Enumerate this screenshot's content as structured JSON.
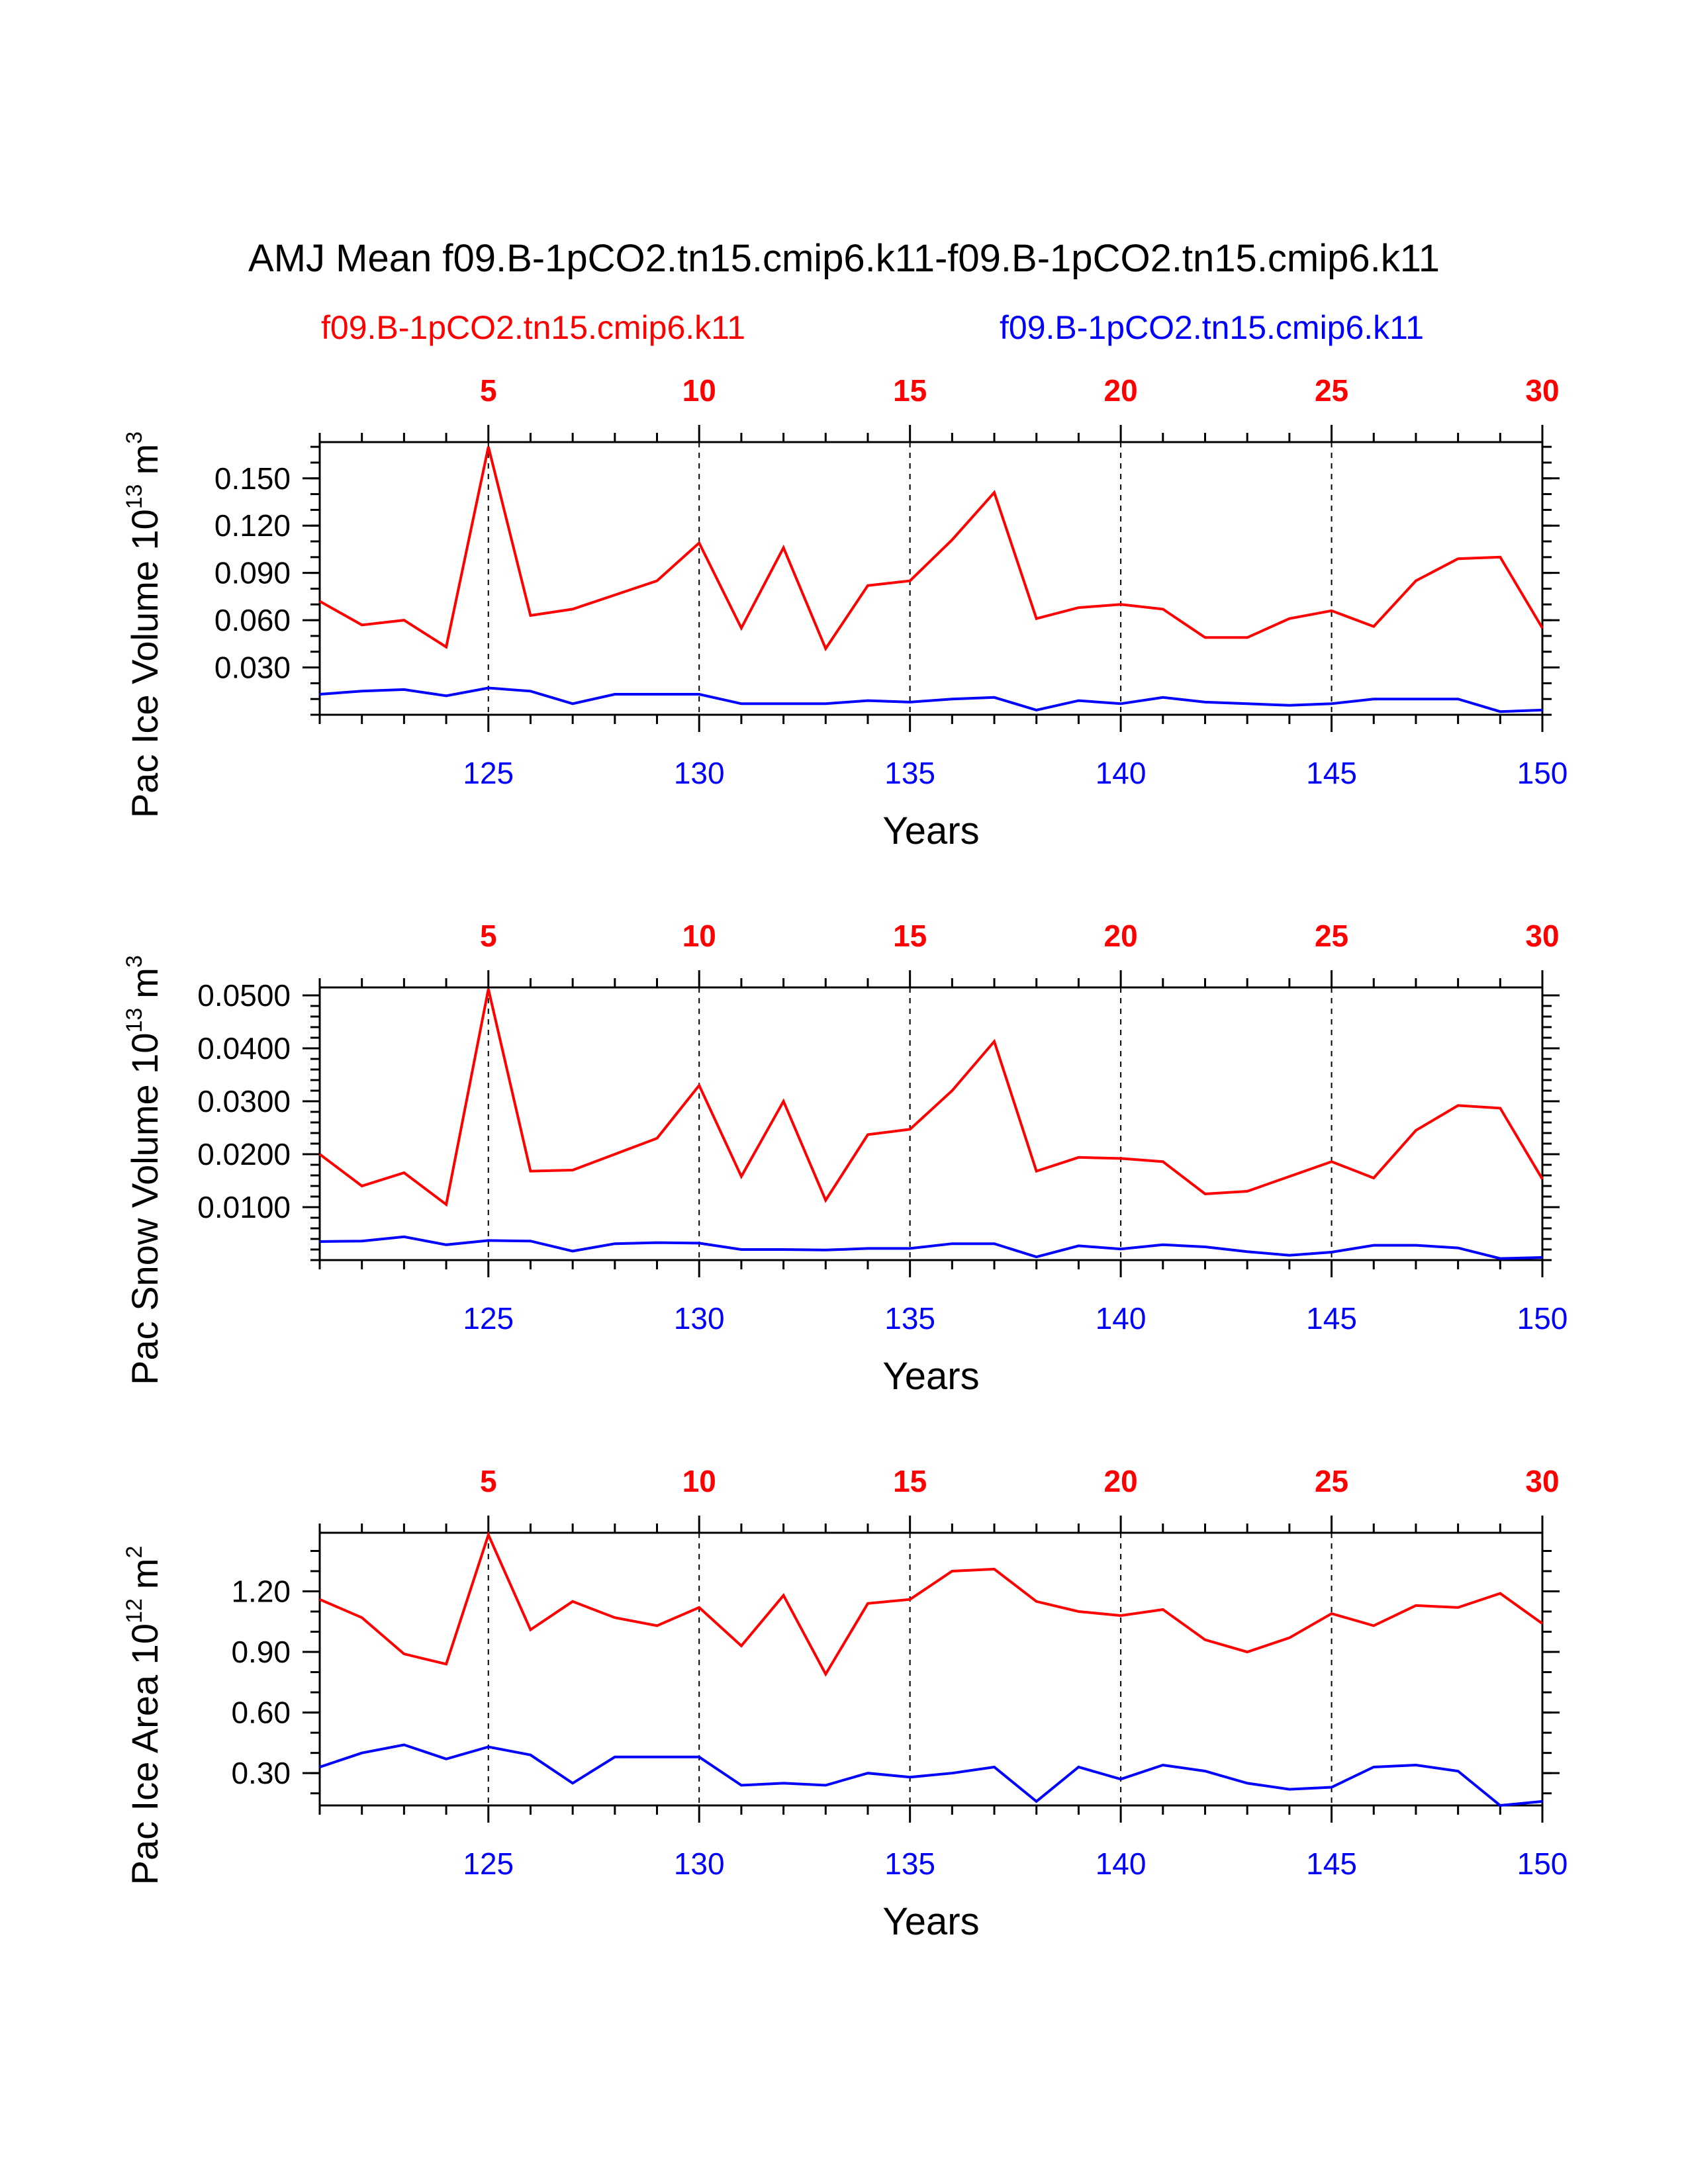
{
  "title": "AMJ Mean f09.B-1pCO2.tn15.cmip6.k11-f09.B-1pCO2.tn15.cmip6.k11",
  "legend": {
    "left": "f09.B-1pCO2.tn15.cmip6.k11",
    "right": "f09.B-1pCO2.tn15.cmip6.k11"
  },
  "colors": {
    "series1": "#ff0000",
    "series2": "#0000ff",
    "axis": "#000000"
  },
  "chart_data": [
    {
      "type": "line",
      "ylabel": "Pac Ice Volume 10",
      "ylabel_exp": "13",
      "ylabel_unit": "m",
      "ylabel_unit_exp": "3",
      "xlabel": "Years",
      "x_bottom_ticks": [
        "125",
        "130",
        "135",
        "140",
        "145",
        "150"
      ],
      "x_top_ticks": [
        "5",
        "10",
        "15",
        "20",
        "25",
        "30"
      ],
      "xlim": [
        121,
        150
      ],
      "ylim": [
        0,
        0.173
      ],
      "y_ticks": [
        0.03,
        0.06,
        0.09,
        0.12,
        0.15
      ],
      "y_tick_labels": [
        "0.030",
        "0.060",
        "0.090",
        "0.120",
        "0.150"
      ],
      "y_minor": 0.01,
      "x": [
        121,
        122,
        123,
        124,
        125,
        126,
        127,
        128,
        129,
        130,
        131,
        132,
        133,
        134,
        135,
        136,
        137,
        138,
        139,
        140,
        141,
        142,
        143,
        144,
        145,
        146,
        147,
        148,
        149,
        150
      ],
      "series": [
        {
          "name": "f09.B-1pCO2.tn15.cmip6.k11",
          "color": "#ff0000",
          "values": [
            0.072,
            0.057,
            0.06,
            0.043,
            0.17,
            0.063,
            0.067,
            0.076,
            0.085,
            0.109,
            0.055,
            0.106,
            0.042,
            0.082,
            0.085,
            0.111,
            0.141,
            0.061,
            0.068,
            0.07,
            0.067,
            0.049,
            0.049,
            0.061,
            0.066,
            0.056,
            0.085,
            0.099,
            0.1,
            0.055
          ]
        },
        {
          "name": "f09.B-1pCO2.tn15.cmip6.k11",
          "color": "#0000ff",
          "values": [
            0.013,
            0.015,
            0.016,
            0.012,
            0.017,
            0.015,
            0.007,
            0.013,
            0.013,
            0.013,
            0.007,
            0.007,
            0.007,
            0.009,
            0.008,
            0.01,
            0.011,
            0.003,
            0.009,
            0.007,
            0.011,
            0.008,
            0.007,
            0.006,
            0.007,
            0.01,
            0.01,
            0.01,
            0.002,
            0.003
          ]
        }
      ]
    },
    {
      "type": "line",
      "ylabel": "Pac Snow Volume 10",
      "ylabel_exp": "13",
      "ylabel_unit": "m",
      "ylabel_unit_exp": "3",
      "xlabel": "Years",
      "x_bottom_ticks": [
        "125",
        "130",
        "135",
        "140",
        "145",
        "150"
      ],
      "x_top_ticks": [
        "5",
        "10",
        "15",
        "20",
        "25",
        "30"
      ],
      "xlim": [
        121,
        150
      ],
      "ylim": [
        0,
        0.0515
      ],
      "y_ticks": [
        0.01,
        0.02,
        0.03,
        0.04,
        0.05
      ],
      "y_tick_labels": [
        "0.0100",
        "0.0200",
        "0.0300",
        "0.0400",
        "0.0500"
      ],
      "y_minor": 0.002,
      "x": [
        121,
        122,
        123,
        124,
        125,
        126,
        127,
        128,
        129,
        130,
        131,
        132,
        133,
        134,
        135,
        136,
        137,
        138,
        139,
        140,
        141,
        142,
        143,
        144,
        145,
        146,
        147,
        148,
        149,
        150
      ],
      "series": [
        {
          "name": "f09.B-1pCO2.tn15.cmip6.k11",
          "color": "#ff0000",
          "values": [
            0.02,
            0.014,
            0.0165,
            0.0105,
            0.0512,
            0.0168,
            0.017,
            0.02,
            0.023,
            0.033,
            0.0158,
            0.03,
            0.0113,
            0.0237,
            0.0247,
            0.032,
            0.0413,
            0.0168,
            0.0194,
            0.0192,
            0.0186,
            0.0125,
            0.013,
            0.0158,
            0.0186,
            0.0155,
            0.0245,
            0.0292,
            0.0287,
            0.0153
          ]
        },
        {
          "name": "f09.B-1pCO2.tn15.cmip6.k11",
          "color": "#0000ff",
          "values": [
            0.0035,
            0.0036,
            0.0044,
            0.0029,
            0.0037,
            0.0036,
            0.0017,
            0.0031,
            0.0033,
            0.0032,
            0.002,
            0.002,
            0.0019,
            0.0022,
            0.0022,
            0.0031,
            0.0031,
            0.0006,
            0.0027,
            0.0021,
            0.0029,
            0.0025,
            0.0016,
            0.0009,
            0.0015,
            0.0028,
            0.0028,
            0.0023,
            0.0003,
            0.0005
          ]
        }
      ]
    },
    {
      "type": "line",
      "ylabel": "Pac Ice Area 10",
      "ylabel_exp": "12",
      "ylabel_unit": "m",
      "ylabel_unit_exp": "2",
      "xlabel": "Years",
      "x_bottom_ticks": [
        "125",
        "130",
        "135",
        "140",
        "145",
        "150"
      ],
      "x_top_ticks": [
        "5",
        "10",
        "15",
        "20",
        "25",
        "30"
      ],
      "xlim": [
        121,
        150
      ],
      "ylim": [
        0.14,
        1.49
      ],
      "y_ticks": [
        0.3,
        0.6,
        0.9,
        1.2
      ],
      "y_tick_labels": [
        "0.30",
        "0.60",
        "0.90",
        "1.20"
      ],
      "y_minor": 0.1,
      "x": [
        121,
        122,
        123,
        124,
        125,
        126,
        127,
        128,
        129,
        130,
        131,
        132,
        133,
        134,
        135,
        136,
        137,
        138,
        139,
        140,
        141,
        142,
        143,
        144,
        145,
        146,
        147,
        148,
        149,
        150
      ],
      "series": [
        {
          "name": "f09.B-1pCO2.tn15.cmip6.k11",
          "color": "#ff0000",
          "values": [
            1.16,
            1.07,
            0.89,
            0.84,
            1.48,
            1.01,
            1.15,
            1.07,
            1.03,
            1.12,
            0.93,
            1.18,
            0.79,
            1.14,
            1.16,
            1.3,
            1.31,
            1.15,
            1.1,
            1.08,
            1.11,
            0.96,
            0.9,
            0.97,
            1.09,
            1.03,
            1.13,
            1.12,
            1.19,
            1.04
          ]
        },
        {
          "name": "f09.B-1pCO2.tn15.cmip6.k11",
          "color": "#0000ff",
          "values": [
            0.33,
            0.4,
            0.44,
            0.37,
            0.43,
            0.39,
            0.25,
            0.38,
            0.38,
            0.38,
            0.24,
            0.25,
            0.24,
            0.3,
            0.28,
            0.3,
            0.33,
            0.16,
            0.33,
            0.27,
            0.34,
            0.31,
            0.25,
            0.22,
            0.23,
            0.33,
            0.34,
            0.31,
            0.14,
            0.16
          ]
        }
      ]
    }
  ]
}
